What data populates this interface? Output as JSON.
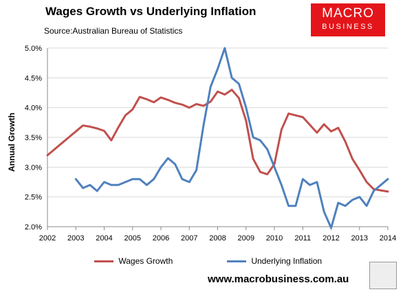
{
  "header": {
    "title": "Wages Growth vs Underlying Inflation",
    "subtitle": "Source:Australian Bureau of Statistics"
  },
  "logo": {
    "line1": "MACRO",
    "line2": "BUSINESS",
    "bg_color": "#e3151a"
  },
  "footer": {
    "website": "www.macrobusiness.com.au",
    "icon": "wolf-logo-icon"
  },
  "colors": {
    "wages": "#c0504d",
    "inflation": "#4f81bd",
    "grid": "#d9d9d9",
    "axis": "#888888"
  },
  "chart_data": {
    "type": "line",
    "title": "Wages Growth vs Underlying Inflation",
    "xlabel": "",
    "ylabel": "Annual Growth",
    "xlim": [
      2002,
      2014
    ],
    "ylim": [
      2.0,
      5.0
    ],
    "xticks": [
      2002,
      2003,
      2004,
      2005,
      2006,
      2007,
      2008,
      2009,
      2010,
      2011,
      2012,
      2013,
      2014
    ],
    "yticks": [
      2.0,
      2.5,
      3.0,
      3.5,
      4.0,
      4.5,
      5.0
    ],
    "ytick_labels": [
      "2.0%",
      "2.5%",
      "3.0%",
      "3.5%",
      "4.0%",
      "4.5%",
      "5.0%"
    ],
    "grid": "horizontal",
    "legend": "bottom",
    "series": [
      {
        "name": "Wages Growth",
        "color": "#c0504d",
        "points": [
          [
            2002.0,
            3.2
          ],
          [
            2002.5,
            3.4
          ],
          [
            2002.75,
            3.5
          ],
          [
            2003.0,
            3.6
          ],
          [
            2003.25,
            3.7
          ],
          [
            2003.5,
            3.68
          ],
          [
            2003.75,
            3.65
          ],
          [
            2004.0,
            3.61
          ],
          [
            2004.25,
            3.45
          ],
          [
            2004.5,
            3.67
          ],
          [
            2004.75,
            3.87
          ],
          [
            2005.0,
            3.97
          ],
          [
            2005.25,
            4.18
          ],
          [
            2005.5,
            4.14
          ],
          [
            2005.75,
            4.09
          ],
          [
            2006.0,
            4.17
          ],
          [
            2006.25,
            4.13
          ],
          [
            2006.5,
            4.08
          ],
          [
            2006.75,
            4.05
          ],
          [
            2007.0,
            4.0
          ],
          [
            2007.25,
            4.06
          ],
          [
            2007.5,
            4.03
          ],
          [
            2007.75,
            4.1
          ],
          [
            2008.0,
            4.27
          ],
          [
            2008.25,
            4.22
          ],
          [
            2008.5,
            4.3
          ],
          [
            2008.75,
            4.16
          ],
          [
            2009.0,
            3.78
          ],
          [
            2009.25,
            3.14
          ],
          [
            2009.5,
            2.92
          ],
          [
            2009.75,
            2.88
          ],
          [
            2010.0,
            3.05
          ],
          [
            2010.25,
            3.63
          ],
          [
            2010.5,
            3.9
          ],
          [
            2010.75,
            3.87
          ],
          [
            2011.0,
            3.84
          ],
          [
            2011.25,
            3.71
          ],
          [
            2011.5,
            3.58
          ],
          [
            2011.75,
            3.72
          ],
          [
            2012.0,
            3.6
          ],
          [
            2012.25,
            3.66
          ],
          [
            2012.5,
            3.43
          ],
          [
            2012.75,
            3.14
          ],
          [
            2013.0,
            2.95
          ],
          [
            2013.25,
            2.75
          ],
          [
            2013.5,
            2.63
          ],
          [
            2013.75,
            2.61
          ],
          [
            2014.0,
            2.59
          ]
        ]
      },
      {
        "name": "Underlying Inflation",
        "color": "#4f81bd",
        "points": [
          [
            2003.0,
            2.8
          ],
          [
            2003.25,
            2.65
          ],
          [
            2003.5,
            2.7
          ],
          [
            2003.75,
            2.6
          ],
          [
            2004.0,
            2.75
          ],
          [
            2004.25,
            2.7
          ],
          [
            2004.5,
            2.7
          ],
          [
            2004.75,
            2.75
          ],
          [
            2005.0,
            2.8
          ],
          [
            2005.25,
            2.8
          ],
          [
            2005.5,
            2.7
          ],
          [
            2005.75,
            2.8
          ],
          [
            2006.0,
            3.0
          ],
          [
            2006.25,
            3.15
          ],
          [
            2006.5,
            3.05
          ],
          [
            2006.75,
            2.8
          ],
          [
            2007.0,
            2.75
          ],
          [
            2007.25,
            2.95
          ],
          [
            2007.5,
            3.7
          ],
          [
            2007.75,
            4.35
          ],
          [
            2008.0,
            4.65
          ],
          [
            2008.25,
            5.0
          ],
          [
            2008.5,
            4.5
          ],
          [
            2008.75,
            4.4
          ],
          [
            2009.0,
            4.0
          ],
          [
            2009.25,
            3.5
          ],
          [
            2009.5,
            3.45
          ],
          [
            2009.75,
            3.3
          ],
          [
            2010.0,
            3.0
          ],
          [
            2010.25,
            2.7
          ],
          [
            2010.5,
            2.35
          ],
          [
            2010.75,
            2.35
          ],
          [
            2011.0,
            2.8
          ],
          [
            2011.25,
            2.7
          ],
          [
            2011.5,
            2.75
          ],
          [
            2011.75,
            2.25
          ],
          [
            2012.0,
            1.98
          ],
          [
            2012.25,
            2.4
          ],
          [
            2012.5,
            2.35
          ],
          [
            2012.75,
            2.45
          ],
          [
            2013.0,
            2.5
          ],
          [
            2013.25,
            2.35
          ],
          [
            2013.5,
            2.6
          ],
          [
            2013.75,
            2.7
          ],
          [
            2014.0,
            2.8
          ]
        ]
      }
    ]
  }
}
